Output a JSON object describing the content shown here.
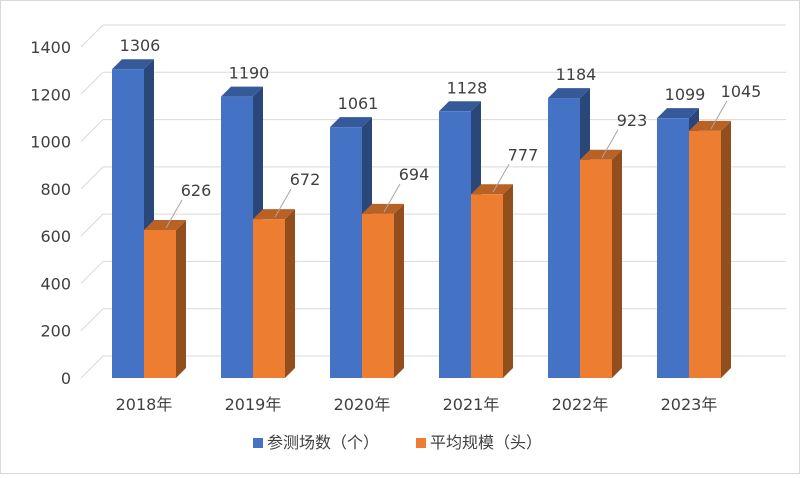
{
  "chart_data": {
    "type": "bar",
    "categories": [
      "2018年",
      "2019年",
      "2020年",
      "2021年",
      "2022年",
      "2023年"
    ],
    "series": [
      {
        "name": "参测场数（个）",
        "values": [
          1306,
          1190,
          1061,
          1128,
          1184,
          1099
        ],
        "color": "#4472C4"
      },
      {
        "name": "平均规模（头）",
        "values": [
          626,
          672,
          694,
          777,
          923,
          1045
        ],
        "color": "#ED7D31"
      }
    ],
    "yticks": [
      "0",
      "200",
      "400",
      "600",
      "800",
      "1000",
      "1200",
      "1400"
    ],
    "ylim": [
      0,
      1400
    ],
    "grid": true,
    "legend": "bottom",
    "style": "3d-clustered-column"
  }
}
